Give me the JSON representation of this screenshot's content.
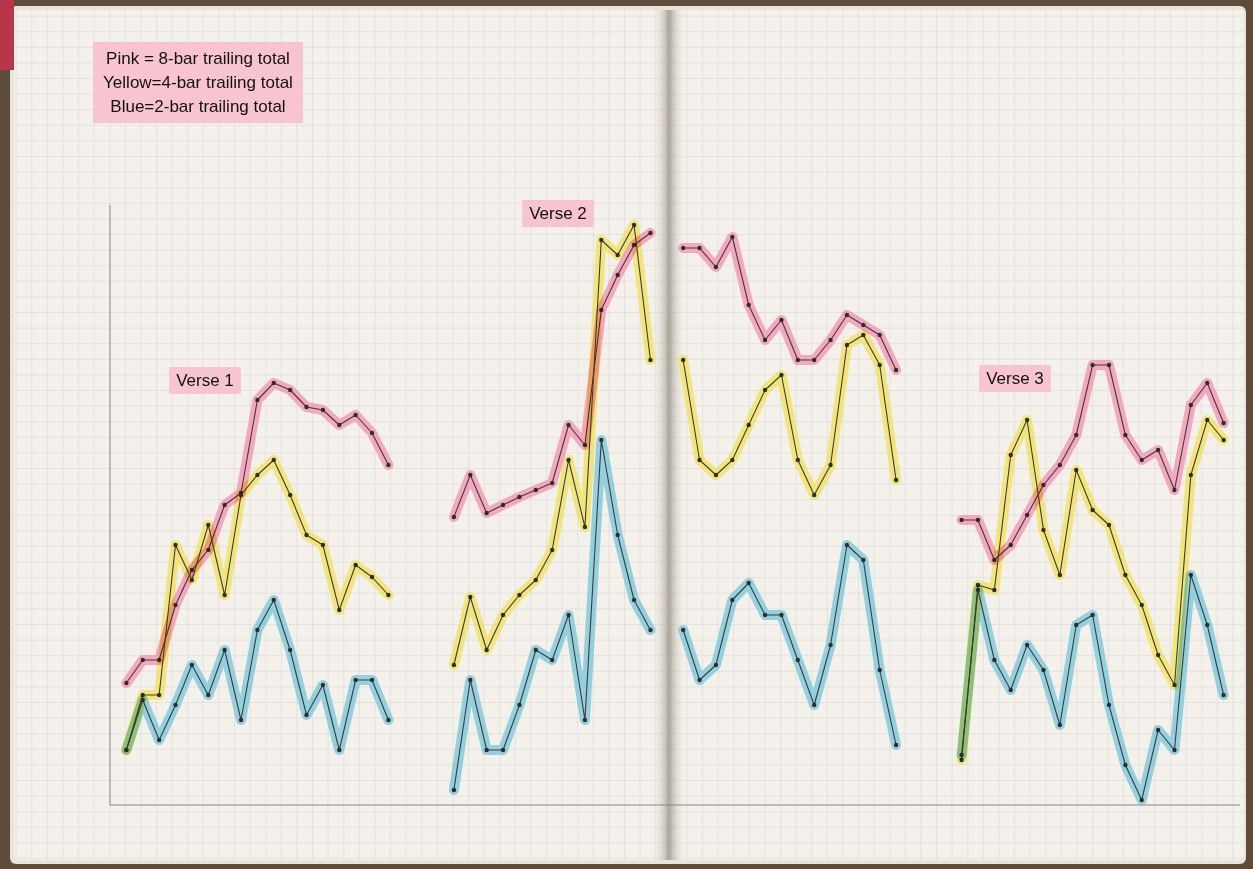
{
  "chart_data": {
    "type": "line",
    "legend": "top-left",
    "tick_labels": false,
    "marker": "circle",
    "annotations": [
      "Verse 1",
      "Verse 2",
      "Verse 3"
    ],
    "xlim": [
      0,
      69
    ],
    "ylim": [
      0,
      60
    ],
    "x": [
      0,
      1,
      2,
      3,
      4,
      5,
      6,
      7,
      8,
      9,
      10,
      11,
      12,
      13,
      14,
      15,
      16,
      17,
      18,
      19,
      20,
      21,
      22,
      23,
      24,
      25,
      26,
      27,
      28,
      29,
      30,
      31,
      32,
      33,
      34,
      35,
      36,
      37,
      38,
      39,
      40,
      41,
      42,
      43,
      44,
      45,
      46,
      47,
      48,
      49,
      50,
      51,
      52,
      53,
      54,
      55,
      56,
      57,
      58,
      59,
      60,
      61,
      62,
      63,
      64,
      65,
      66,
      67,
      68
    ],
    "series": [
      {
        "name": "Pink = 8-bar trailing total",
        "color": "#f48fb1",
        "values": [
          null,
          12.2,
          14.5,
          14.5,
          20,
          23.5,
          25.5,
          30,
          31.2,
          40.5,
          42.2,
          41.5,
          39.8,
          39.5,
          38,
          39,
          37.2,
          34,
          null,
          null,
          null,
          28.8,
          33,
          29.2,
          30,
          30.8,
          31.5,
          32.2,
          38,
          36,
          49.5,
          53,
          56,
          57.2,
          null,
          55.7,
          55.7,
          53.8,
          56.8,
          50,
          46.5,
          48.5,
          44.5,
          44.5,
          46.5,
          49,
          48,
          47,
          43.5,
          null,
          null,
          null,
          28.5,
          28.5,
          24.5,
          26,
          29,
          32,
          34,
          37,
          44,
          44,
          37,
          34.5,
          35.5,
          31.5,
          40,
          42.2,
          38.2
        ]
      },
      {
        "name": "Yellow=4-bar trailing total",
        "color": "#f2e05a",
        "values": [
          null,
          5.5,
          11,
          11,
          26,
          22.5,
          28,
          21,
          31,
          33,
          34.5,
          31,
          27,
          26,
          19.5,
          24,
          22.8,
          21,
          null,
          null,
          null,
          14,
          20.8,
          15.5,
          19,
          21,
          22.5,
          25.5,
          34.5,
          27.8,
          56.5,
          55,
          58,
          44.5,
          null,
          44.5,
          34.5,
          33,
          34.5,
          38,
          41.5,
          43,
          34.5,
          31,
          34,
          46,
          47,
          44,
          32.5,
          null,
          null,
          null,
          4.5,
          22,
          21.5,
          35,
          38.5,
          27.5,
          23,
          33.5,
          29.5,
          28,
          23,
          20,
          15,
          12,
          33,
          38.5,
          36.5
        ]
      },
      {
        "name": "Blue=2-bar trailing total",
        "color": "#74c4da",
        "values": [
          null,
          5.5,
          10.5,
          6.5,
          10,
          14,
          11,
          15.5,
          8.5,
          17.5,
          20.5,
          15.5,
          9,
          12,
          5.5,
          12.5,
          12.5,
          8.5,
          null,
          null,
          null,
          1.5,
          12.5,
          5.5,
          5.5,
          10,
          15.5,
          14.5,
          19,
          8.5,
          36.5,
          27,
          20.5,
          17.5,
          null,
          17.5,
          12.5,
          14,
          20.5,
          22.2,
          19,
          19,
          14.5,
          10,
          16,
          26,
          24.5,
          13.5,
          6,
          null,
          null,
          null,
          5,
          21.5,
          14.5,
          11.5,
          16,
          13.5,
          8,
          18,
          19,
          10,
          4,
          0.5,
          7.5,
          5.5,
          23,
          18,
          11
        ]
      }
    ]
  }
}
